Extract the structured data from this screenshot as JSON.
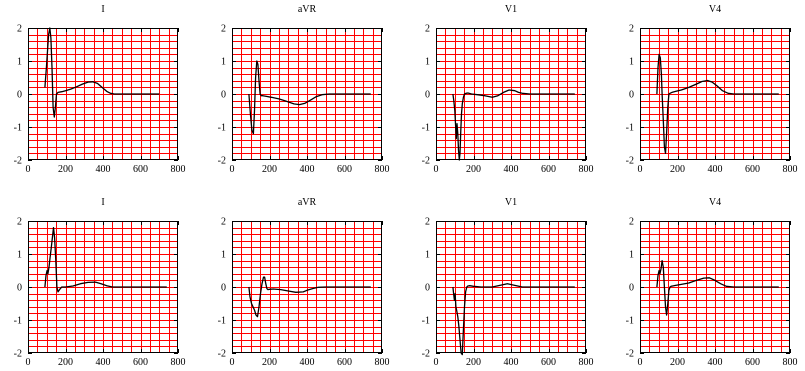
{
  "colors": {
    "grid": "#ff0000",
    "frame": "#000000",
    "trace": "#000000",
    "background": "#ffffff"
  },
  "layout_rows": 2,
  "layout_cols": 4,
  "chart_data": [
    {
      "type": "line",
      "title": "I",
      "xlim": [
        0,
        800
      ],
      "ylim": [
        -2,
        2
      ],
      "xticks": [
        "0",
        "200",
        "400",
        "600",
        "800"
      ],
      "yticks": [
        "2",
        "1",
        "0",
        "-1",
        "-2"
      ],
      "grid": true,
      "series": [
        {
          "x": [
            90,
            98,
            104,
            110,
            116,
            122,
            128,
            134,
            140,
            146,
            152,
            160,
            180,
            200,
            230,
            260,
            290,
            320,
            345,
            370,
            395,
            420,
            440,
            460,
            500,
            560,
            620,
            700
          ],
          "y": [
            0.2,
            0.8,
            1.3,
            1.8,
            2.0,
            1.7,
            0.8,
            -0.4,
            -0.7,
            -0.4,
            0.0,
            0.05,
            0.07,
            0.1,
            0.15,
            0.22,
            0.3,
            0.36,
            0.37,
            0.32,
            0.2,
            0.08,
            0.02,
            0.0,
            0.0,
            0.0,
            0.0,
            0.0
          ]
        }
      ]
    },
    {
      "type": "line",
      "title": "aVR",
      "xlim": [
        0,
        800
      ],
      "ylim": [
        -2,
        2
      ],
      "xticks": [
        "0",
        "200",
        "400",
        "600",
        "800"
      ],
      "yticks": [
        "2",
        "1",
        "0",
        "-1",
        "-2"
      ],
      "grid": true,
      "series": [
        {
          "x": [
            90,
            98,
            106,
            114,
            120,
            126,
            132,
            138,
            144,
            150,
            156,
            164,
            180,
            210,
            250,
            290,
            330,
            360,
            390,
            420,
            450,
            480,
            520,
            580,
            650,
            740
          ],
          "y": [
            0.0,
            -0.6,
            -1.1,
            -1.2,
            -0.5,
            0.5,
            1.0,
            0.9,
            0.4,
            0.0,
            -0.05,
            -0.05,
            -0.07,
            -0.1,
            -0.15,
            -0.22,
            -0.3,
            -0.32,
            -0.28,
            -0.18,
            -0.08,
            -0.02,
            0.0,
            0.0,
            0.0,
            0.0
          ]
        }
      ]
    },
    {
      "type": "line",
      "title": "V1",
      "xlim": [
        0,
        800
      ],
      "ylim": [
        -2,
        2
      ],
      "xticks": [
        "0",
        "200",
        "400",
        "600",
        "800"
      ],
      "yticks": [
        "2",
        "1",
        "0",
        "-1",
        "-2"
      ],
      "grid": true,
      "series": [
        {
          "x": [
            90,
            95,
            100,
            104,
            108,
            112,
            116,
            120,
            124,
            128,
            132,
            136,
            140,
            146,
            152,
            160,
            170,
            190,
            220,
            260,
            300,
            330,
            360,
            390,
            420,
            440,
            460,
            500,
            560,
            640,
            740
          ],
          "y": [
            0.0,
            -0.2,
            -0.5,
            -0.9,
            -1.35,
            -0.9,
            -1.2,
            -1.7,
            -2.0,
            -1.8,
            -1.1,
            -0.6,
            -0.3,
            -0.1,
            0.0,
            0.02,
            0.03,
            0.0,
            -0.02,
            -0.05,
            -0.1,
            -0.05,
            0.05,
            0.12,
            0.1,
            0.05,
            0.02,
            0.0,
            0.0,
            0.0,
            0.0
          ]
        }
      ]
    },
    {
      "type": "line",
      "title": "V4",
      "xlim": [
        0,
        800
      ],
      "ylim": [
        -2,
        2
      ],
      "xticks": [
        "0",
        "200",
        "400",
        "600",
        "800"
      ],
      "yticks": [
        "2",
        "1",
        "0",
        "-1",
        "-2"
      ],
      "grid": true,
      "series": [
        {
          "x": [
            90,
            96,
            102,
            108,
            114,
            118,
            124,
            130,
            136,
            142,
            148,
            154,
            160,
            170,
            190,
            220,
            260,
            300,
            330,
            360,
            385,
            410,
            440,
            470,
            500,
            560,
            640,
            740
          ],
          "y": [
            0.0,
            0.8,
            1.2,
            1.1,
            0.6,
            0.0,
            -0.8,
            -1.6,
            -1.8,
            -1.2,
            -0.4,
            0.0,
            0.02,
            0.05,
            0.08,
            0.12,
            0.2,
            0.3,
            0.38,
            0.41,
            0.36,
            0.25,
            0.1,
            0.02,
            0.0,
            0.0,
            0.0,
            0.0
          ]
        }
      ]
    },
    {
      "type": "line",
      "title": "I",
      "xlim": [
        0,
        800
      ],
      "ylim": [
        -2,
        2
      ],
      "xticks": [
        "0",
        "200",
        "400",
        "600",
        "800"
      ],
      "yticks": [
        "2",
        "1",
        "0",
        "-1",
        "-2"
      ],
      "grid": true,
      "series": [
        {
          "x": [
            90,
            96,
            102,
            106,
            112,
            118,
            124,
            130,
            136,
            142,
            148,
            154,
            160,
            166,
            172,
            180,
            200,
            240,
            280,
            320,
            360,
            390,
            420,
            450,
            500,
            560,
            640,
            740
          ],
          "y": [
            0.0,
            0.35,
            0.5,
            0.4,
            0.6,
            0.9,
            1.2,
            1.5,
            1.8,
            1.5,
            0.8,
            0.0,
            -0.15,
            -0.1,
            -0.05,
            0.0,
            0.0,
            0.03,
            0.1,
            0.14,
            0.15,
            0.1,
            0.04,
            0.0,
            0.0,
            0.0,
            0.0,
            0.0
          ]
        }
      ]
    },
    {
      "type": "line",
      "title": "aVR",
      "xlim": [
        0,
        800
      ],
      "ylim": [
        -2,
        2
      ],
      "xticks": [
        "0",
        "200",
        "400",
        "600",
        "800"
      ],
      "yticks": [
        "2",
        "1",
        "0",
        "-1",
        "-2"
      ],
      "grid": true,
      "series": [
        {
          "x": [
            90,
            96,
            104,
            112,
            120,
            128,
            136,
            144,
            152,
            160,
            168,
            174,
            180,
            186,
            192,
            200,
            220,
            260,
            300,
            340,
            380,
            400,
            430,
            460,
            500,
            560,
            640,
            740
          ],
          "y": [
            0.0,
            -0.3,
            -0.5,
            -0.6,
            -0.7,
            -0.85,
            -0.9,
            -0.6,
            -0.2,
            0.1,
            0.3,
            0.3,
            0.1,
            -0.05,
            -0.08,
            -0.07,
            -0.06,
            -0.08,
            -0.12,
            -0.16,
            -0.15,
            -0.1,
            -0.05,
            -0.01,
            0.0,
            0.0,
            0.0,
            0.0
          ]
        }
      ]
    },
    {
      "type": "line",
      "title": "V1",
      "xlim": [
        0,
        800
      ],
      "ylim": [
        -2,
        2
      ],
      "xticks": [
        "0",
        "200",
        "400",
        "600",
        "800"
      ],
      "yticks": [
        "2",
        "1",
        "0",
        "-1",
        "-2"
      ],
      "grid": true,
      "series": [
        {
          "x": [
            90,
            94,
            98,
            102,
            106,
            110,
            116,
            122,
            128,
            134,
            140,
            146,
            152,
            158,
            164,
            170,
            180,
            200,
            240,
            300,
            340,
            380,
            420,
            460,
            500,
            560,
            640,
            740
          ],
          "y": [
            0.0,
            -0.2,
            -0.4,
            -0.2,
            -0.6,
            -0.7,
            -0.9,
            -1.2,
            -1.6,
            -2.0,
            -2.05,
            -1.3,
            -0.6,
            -0.15,
            0.0,
            0.03,
            0.04,
            0.02,
            0.0,
            0.0,
            0.05,
            0.1,
            0.05,
            0.0,
            0.0,
            0.0,
            0.0,
            0.0
          ]
        }
      ]
    },
    {
      "type": "line",
      "title": "V4",
      "xlim": [
        0,
        800
      ],
      "ylim": [
        -2,
        2
      ],
      "xticks": [
        "0",
        "200",
        "400",
        "600",
        "800"
      ],
      "yticks": [
        "2",
        "1",
        "0",
        "-1",
        "-2"
      ],
      "grid": true,
      "series": [
        {
          "x": [
            90,
            96,
            102,
            106,
            112,
            118,
            124,
            130,
            136,
            142,
            148,
            154,
            160,
            166,
            174,
            190,
            220,
            260,
            300,
            340,
            370,
            400,
            430,
            460,
            500,
            560,
            640,
            740
          ],
          "y": [
            0.0,
            0.35,
            0.5,
            0.4,
            0.55,
            0.8,
            0.6,
            0.0,
            -0.6,
            -0.85,
            -0.5,
            -0.1,
            0.0,
            0.02,
            0.03,
            0.05,
            0.08,
            0.12,
            0.2,
            0.27,
            0.28,
            0.2,
            0.1,
            0.02,
            0.0,
            0.0,
            0.0,
            0.0
          ]
        }
      ]
    }
  ]
}
